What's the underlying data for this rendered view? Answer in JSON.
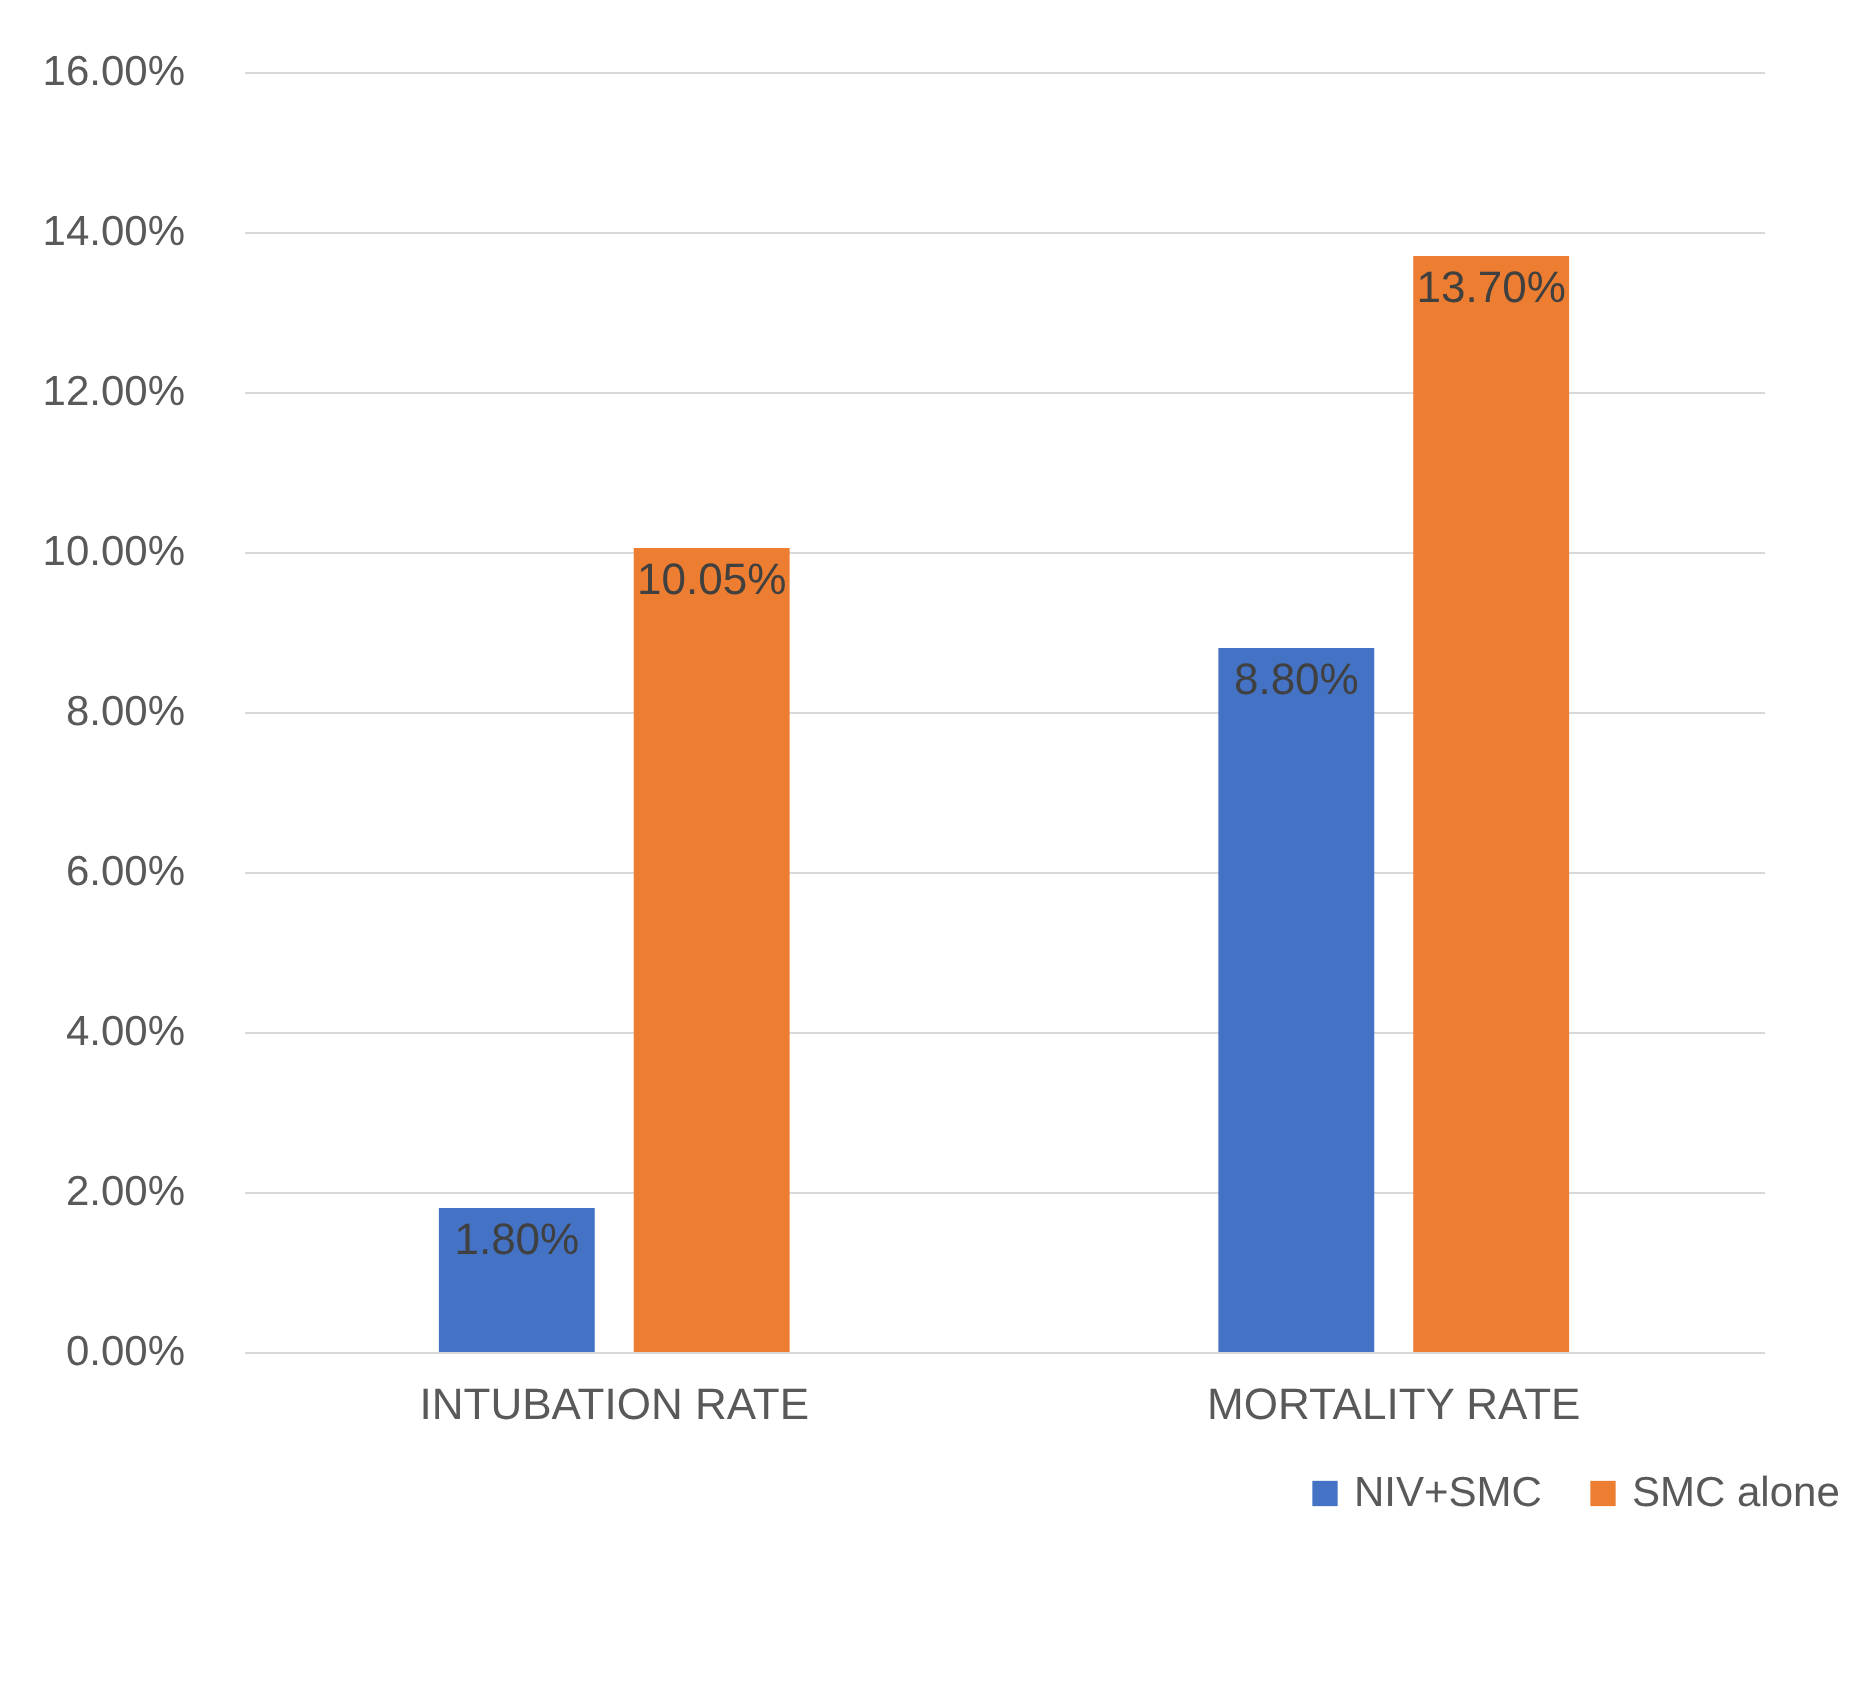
{
  "chart_data": {
    "type": "bar",
    "categories": [
      "INTUBATION RATE",
      "MORTALITY RATE"
    ],
    "series": [
      {
        "name": "NIV+SMC",
        "color": "#4472c4",
        "values": [
          1.8,
          8.8
        ],
        "value_labels": [
          "1.80%",
          "8.80%"
        ]
      },
      {
        "name": "SMC alone",
        "color": "#ed7d31",
        "values": [
          10.05,
          13.7
        ],
        "value_labels": [
          "10.05%",
          "13.70%"
        ]
      }
    ],
    "ylim": [
      0,
      16
    ],
    "yticks": [
      {
        "value": 0,
        "label": "0.00%"
      },
      {
        "value": 2,
        "label": "2.00%"
      },
      {
        "value": 4,
        "label": "4.00%"
      },
      {
        "value": 6,
        "label": "6.00%"
      },
      {
        "value": 8,
        "label": "8.00%"
      },
      {
        "value": 10,
        "label": "10.00%"
      },
      {
        "value": 12,
        "label": "12.00%"
      },
      {
        "value": 14,
        "label": "14.00%"
      },
      {
        "value": 16,
        "label": "16.00%"
      }
    ],
    "grid": "y",
    "legend": "bottom right"
  }
}
